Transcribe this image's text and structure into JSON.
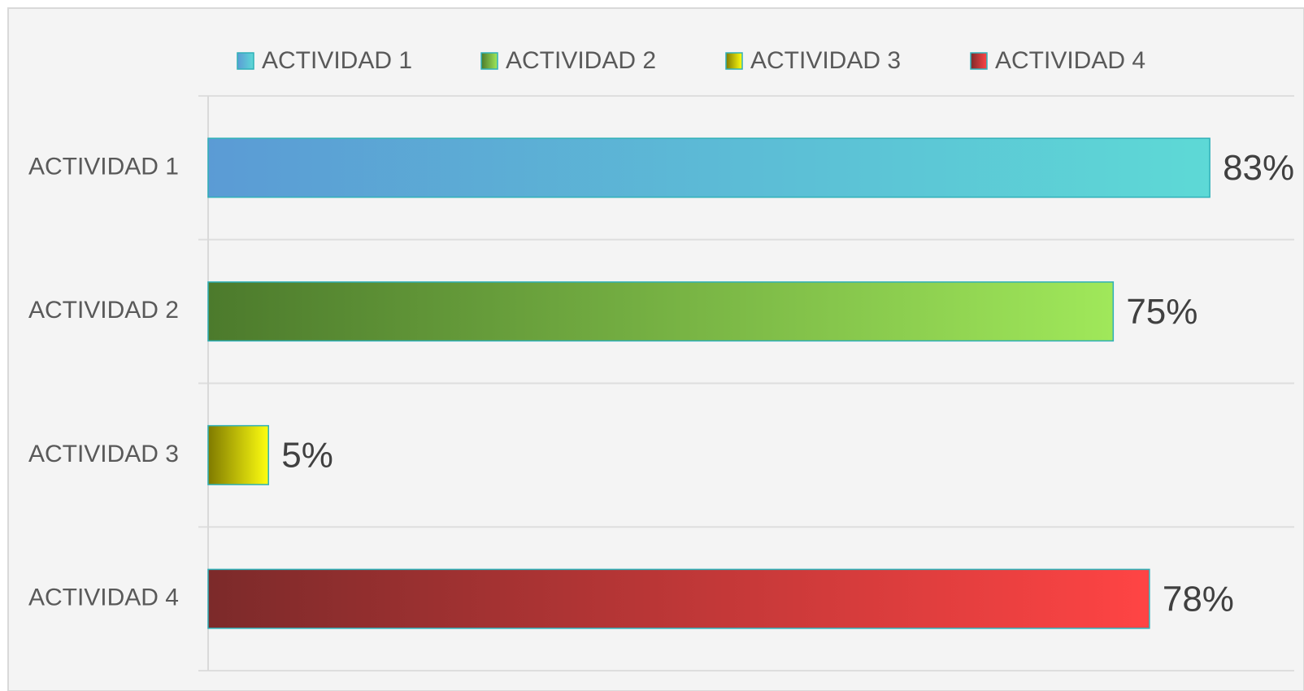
{
  "chart_data": {
    "type": "bar",
    "orientation": "horizontal",
    "categories": [
      "ACTIVIDAD 1",
      "ACTIVIDAD 2",
      "ACTIVIDAD 3",
      "ACTIVIDAD 4"
    ],
    "values": [
      83,
      75,
      5,
      78
    ],
    "value_labels": [
      "83%",
      "75%",
      "5%",
      "78%"
    ],
    "colors": [
      [
        "#5b9bd5",
        "#5dd9d6"
      ],
      [
        "#4c7a2c",
        "#a0e85a"
      ],
      [
        "#7f7a00",
        "#ffff10"
      ],
      [
        "#7c2a2a",
        "#ff4444"
      ]
    ],
    "xlim": [
      0,
      90
    ],
    "legend": "top"
  }
}
